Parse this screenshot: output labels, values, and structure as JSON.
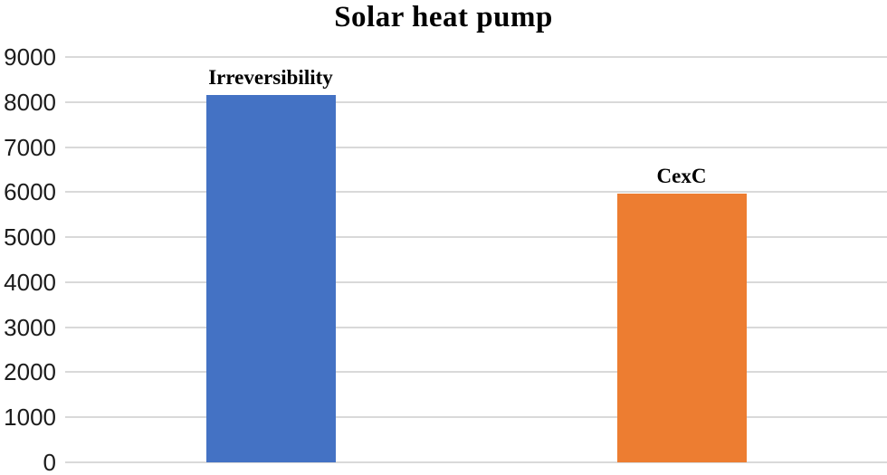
{
  "chart_data": {
    "type": "bar",
    "title": "Solar heat pump",
    "categories": [
      "Irreversibility",
      "CexC"
    ],
    "values": [
      8150,
      5970
    ],
    "bar_colors": [
      "#4472C4",
      "#ED7D31"
    ],
    "xlabel": "",
    "ylabel": "",
    "ylim": [
      0,
      9000
    ],
    "ytick_step": 1000,
    "ytick_labels": [
      "0",
      "1000",
      "2000",
      "3000",
      "4000",
      "5000",
      "6000",
      "7000",
      "8000",
      "9000"
    ],
    "grid": true,
    "gridline_color": "#d9d9d9",
    "background_color": "#ffffff",
    "legend_position": "none",
    "category_labels_position": "above-bars"
  }
}
